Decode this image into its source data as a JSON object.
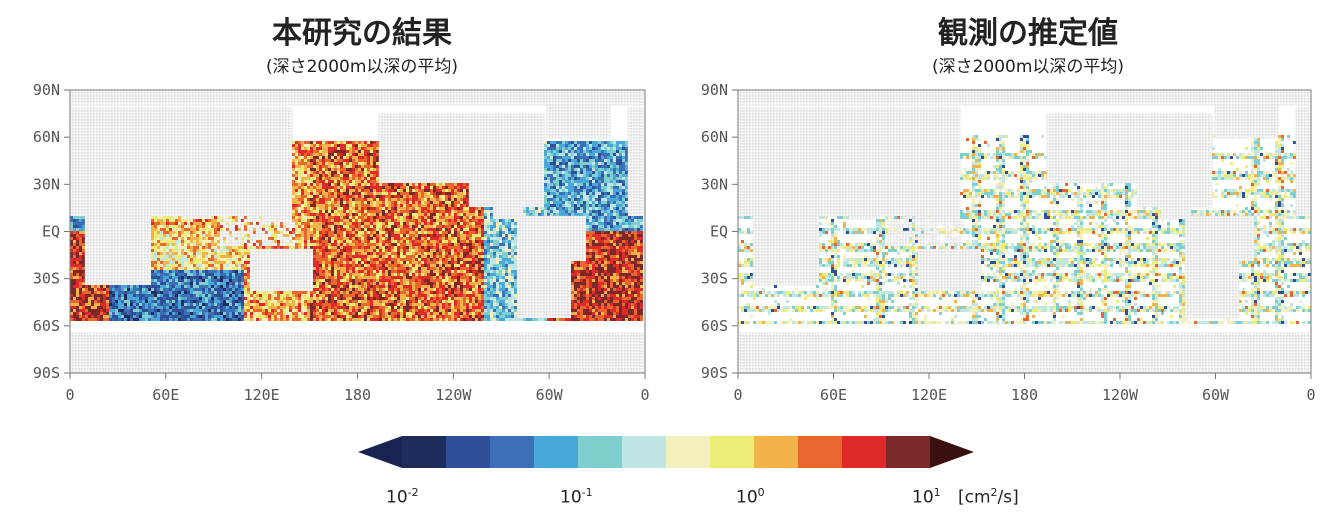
{
  "panels": [
    {
      "title": "本研究の結果",
      "subtitle": "(深さ2000m以深の平均)",
      "coverage": "full"
    },
    {
      "title": "観測の推定値",
      "subtitle": "(深さ2000m以深の平均)",
      "coverage": "sparse"
    }
  ],
  "chart_data": [
    {
      "type": "heatmap",
      "title": "本研究の結果",
      "subtitle": "(深さ2000m以深の平均)",
      "ytick_labels": [
        "90N",
        "60N",
        "30N",
        "EQ",
        "30S",
        "60S",
        "90S"
      ],
      "xtick_labels": [
        "0",
        "60E",
        "120E",
        "180",
        "120W",
        "60W",
        "0"
      ],
      "ylim_deg": [
        -90,
        90
      ],
      "xlim_deg": [
        0,
        360
      ],
      "grid": true
    },
    {
      "type": "heatmap",
      "title": "観測の推定値",
      "subtitle": "(深さ2000m以深の平均)",
      "ytick_labels": [
        "90N",
        "60N",
        "30N",
        "EQ",
        "30S",
        "60S",
        "90S"
      ],
      "xtick_labels": [
        "0",
        "60E",
        "120E",
        "180",
        "120W",
        "60W",
        "0"
      ],
      "ylim_deg": [
        -90,
        90
      ],
      "xlim_deg": [
        0,
        360
      ],
      "grid": true
    }
  ],
  "colorbar": {
    "colors": [
      "#1e2d5c",
      "#2f4f98",
      "#3d6fb6",
      "#4aa8d8",
      "#7fcfcf",
      "#bfe6e2",
      "#f3f0bd",
      "#ecec79",
      "#f2b44a",
      "#e8672f",
      "#df2a2a",
      "#7a2828"
    ],
    "extend_low_color": "#1a2452",
    "extend_high_color": "#3b1010",
    "tick_labels": [
      {
        "base": "10",
        "exp": "-2"
      },
      {
        "base": "10",
        "exp": "-1"
      },
      {
        "base": "10",
        "exp": "0"
      },
      {
        "base": "10",
        "exp": "1"
      }
    ],
    "unit_prefix": "[cm",
    "unit_sup": "2",
    "unit_suffix": "/s]"
  }
}
